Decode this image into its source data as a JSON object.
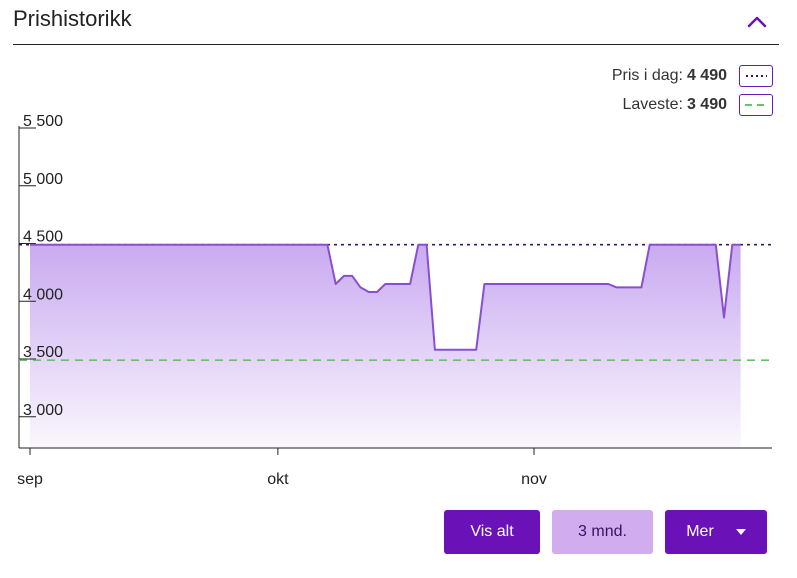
{
  "header": {
    "title": "Prishistorikk",
    "collapse_icon": "chevron-up-icon"
  },
  "legend": {
    "today": {
      "label": "Pris i dag:",
      "value": "4 490",
      "style": "dotted",
      "color": "#4b1d86"
    },
    "lowest": {
      "label": "Laveste:",
      "value": "3 490",
      "style": "dashed",
      "color": "#6cc06c"
    }
  },
  "buttons": {
    "all": "Vis alt",
    "three_months": "3 mnd.",
    "more": "Mer"
  },
  "colors": {
    "accent": "#6a12b8",
    "accent_light": "#d1adf0",
    "line": "#8a4fd0",
    "fill_top": "#c9aaf0"
  },
  "chart_data": {
    "type": "area",
    "ylim": [
      2730,
      5500
    ],
    "yticks": [
      3000,
      3500,
      4000,
      4500,
      5000,
      5500
    ],
    "ytick_labels": [
      "3 000",
      "3 500",
      "4 000",
      "4 500",
      "5 000",
      "5 500"
    ],
    "xlim": [
      "2023-09-01",
      "2023-11-29"
    ],
    "xticks": [
      "2023-09-01",
      "2023-10-01",
      "2023-11-01"
    ],
    "xtick_labels": [
      "sep",
      "okt",
      "nov"
    ],
    "reference_lines": [
      {
        "name": "Pris i dag",
        "value": 4490,
        "style": "dotted"
      },
      {
        "name": "Laveste",
        "value": 3490,
        "style": "dashed"
      }
    ],
    "series": [
      {
        "x": [
          "2023-09-01",
          "2023-10-07",
          "2023-10-08",
          "2023-10-09",
          "2023-10-10",
          "2023-10-11",
          "2023-10-12",
          "2023-10-13",
          "2023-10-14",
          "2023-10-15",
          "2023-10-16",
          "2023-10-17",
          "2023-10-18",
          "2023-10-19",
          "2023-10-20",
          "2023-10-21",
          "2023-10-25",
          "2023-10-26",
          "2023-11-10",
          "2023-11-11",
          "2023-11-14",
          "2023-11-15",
          "2023-11-23",
          "2023-11-24",
          "2023-11-25",
          "2023-11-26"
        ],
        "y": [
          4490,
          4490,
          4150,
          4220,
          4220,
          4120,
          4080,
          4080,
          4150,
          4150,
          4150,
          4150,
          4490,
          4490,
          3580,
          3580,
          3580,
          4150,
          4150,
          4120,
          4120,
          4490,
          4490,
          3860,
          4490,
          4490
        ]
      }
    ]
  }
}
